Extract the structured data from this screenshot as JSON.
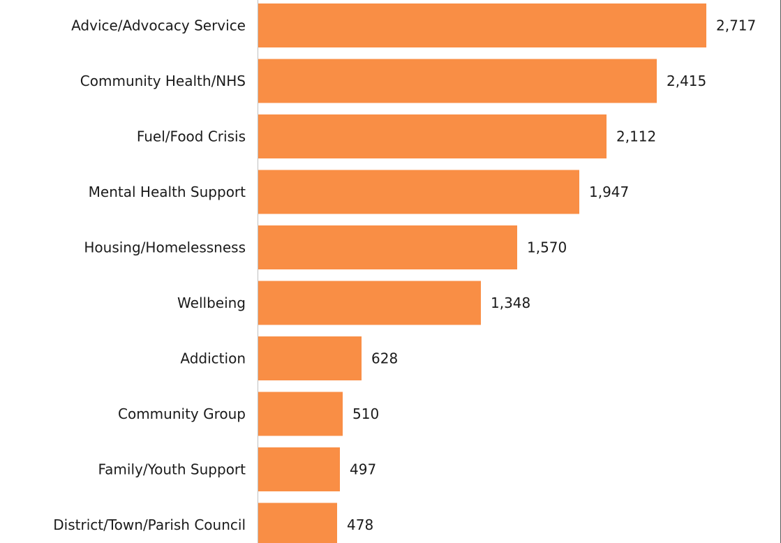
{
  "chart_data": {
    "type": "bar",
    "orientation": "horizontal",
    "categories": [
      "Advice/Advocacy Service",
      "Community Health/NHS",
      "Fuel/Food Crisis",
      "Mental Health Support",
      "Housing/Homelessness",
      "Wellbeing",
      "Addiction",
      "Community Group",
      "Family/Youth Support",
      "District/Town/Parish Council"
    ],
    "values": [
      2717,
      2415,
      2112,
      1947,
      1570,
      1348,
      628,
      510,
      497,
      478
    ],
    "value_labels": [
      "2,717",
      "2,415",
      "2,112",
      "1,947",
      "1,570",
      "1,348",
      "628",
      "510",
      "497",
      "478"
    ],
    "bar_color": "#F98E45",
    "grid": false,
    "legend": "none"
  }
}
